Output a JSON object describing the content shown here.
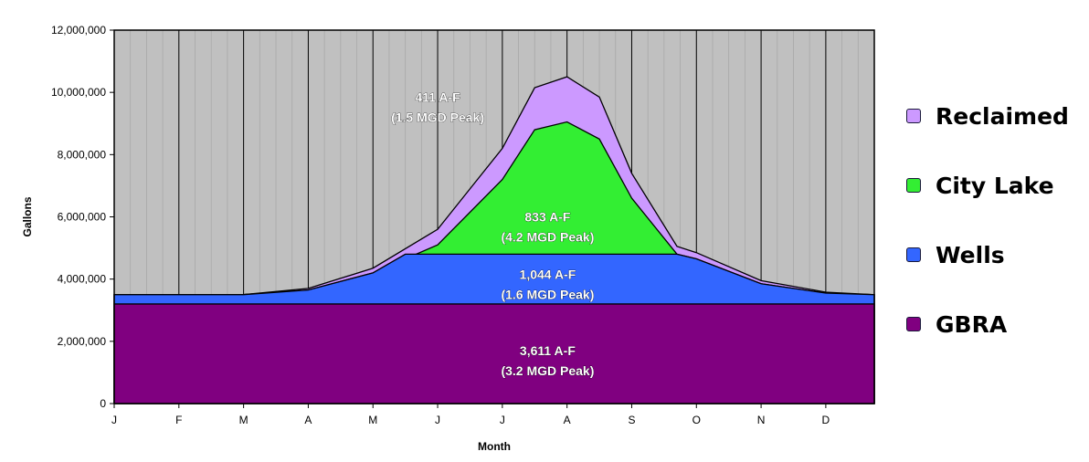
{
  "chart_data": {
    "type": "area",
    "stacked": true,
    "title": "",
    "xlabel": "Month",
    "ylabel": "Gallons",
    "ylim": [
      0,
      12000000
    ],
    "xlim": [
      0,
      11.75
    ],
    "yticks": [
      0,
      2000000,
      4000000,
      6000000,
      8000000,
      10000000,
      12000000
    ],
    "ytick_labels": [
      "0",
      "2,000,000",
      "4,000,000",
      "6,000,000",
      "8,000,000",
      "10,000,000",
      "12,000,000"
    ],
    "xtick_labels": [
      "J",
      "F",
      "M",
      "A",
      "M",
      "J",
      "J",
      "A",
      "S",
      "O",
      "N",
      "D"
    ],
    "grid": "vertical",
    "background": "#c0c0c0",
    "legend_position": "right",
    "series": [
      {
        "name": "GBRA",
        "color": "#800080",
        "x": [
          0,
          11.75
        ],
        "y": [
          3200000,
          3200000
        ]
      },
      {
        "name": "Wells",
        "color": "#3366ff",
        "x": [
          0,
          1,
          2,
          3,
          4,
          4.5,
          5,
          6,
          6.5,
          7,
          7.5,
          8,
          8.7,
          9,
          10,
          11,
          11.75
        ],
        "y": [
          3500000,
          3500000,
          3500000,
          3650000,
          4200000,
          4800000,
          4800000,
          4800000,
          4800000,
          4800000,
          4800000,
          4800000,
          4800000,
          4650000,
          3850000,
          3550000,
          3500000
        ]
      },
      {
        "name": "City Lake",
        "color": "#33ee33",
        "x": [
          0,
          1,
          2,
          3,
          4,
          5,
          6,
          6.5,
          7,
          7.5,
          8,
          8.7,
          9,
          10,
          11,
          11.75
        ],
        "y": [
          3500000,
          3500000,
          3500000,
          3650000,
          4200000,
          5100000,
          7200000,
          8800000,
          9050000,
          8500000,
          6600000,
          4800000,
          4650000,
          3850000,
          3550000,
          3500000
        ]
      },
      {
        "name": "Reclaimed",
        "color": "#cc99ff",
        "x": [
          0,
          1,
          2,
          3,
          4,
          5,
          6,
          6.5,
          7,
          7.5,
          8,
          8.7,
          9,
          10,
          11,
          11.75
        ],
        "y": [
          3500000,
          3500000,
          3500000,
          3700000,
          4350000,
          5600000,
          8200000,
          10150000,
          10500000,
          9850000,
          7400000,
          5050000,
          4850000,
          3950000,
          3580000,
          3500000
        ]
      }
    ],
    "annotations": [
      {
        "lines": [
          "411 A-F",
          "(1.5 MGD Peak)"
        ],
        "x": 5.0,
        "y": 9700000
      },
      {
        "lines": [
          "833 A-F",
          "(4.2 MGD Peak)"
        ],
        "x": 6.7,
        "y": 5850000
      },
      {
        "lines": [
          "1,044 A-F",
          "(1.6 MGD Peak)"
        ],
        "x": 6.7,
        "y": 4000000
      },
      {
        "lines": [
          "3,611 A-F",
          "(3.2 MGD Peak)"
        ],
        "x": 6.7,
        "y": 1550000
      }
    ]
  },
  "legend": {
    "items": [
      {
        "label": "Reclaimed",
        "color": "#cc99ff"
      },
      {
        "label": "City Lake",
        "color": "#33ee33"
      },
      {
        "label": "Wells",
        "color": "#3366ff"
      },
      {
        "label": "GBRA",
        "color": "#800080"
      }
    ]
  }
}
